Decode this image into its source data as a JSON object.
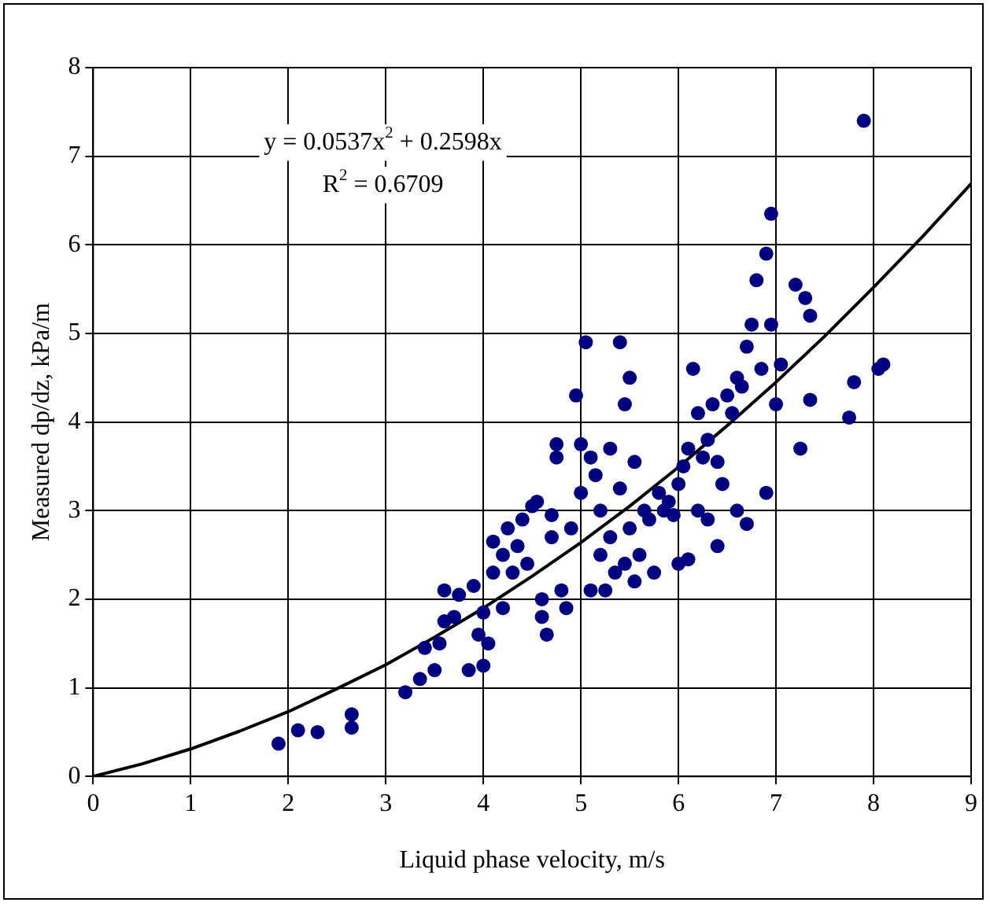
{
  "chart_data": {
    "type": "scatter",
    "xlabel": "Liquid phase velocity, m/s",
    "ylabel": "Measured dp/dz, kPa/m",
    "xlim": [
      0,
      9
    ],
    "xticks": [
      0,
      1,
      2,
      3,
      4,
      5,
      6,
      7,
      8,
      9
    ],
    "ylim": [
      0,
      8
    ],
    "yticks": [
      0,
      1,
      2,
      3,
      4,
      5,
      6,
      7,
      8
    ],
    "grid": true,
    "legend": false,
    "marker": "circle",
    "annotations": [
      "y = 0.0537x$^{2}$ + 0.2598x",
      "R$^{2}$ = 0.6709"
    ],
    "series": [
      {
        "color": "#000080",
        "x": [
          1.9,
          2.1,
          2.3,
          2.65,
          2.65,
          3.2,
          3.35,
          3.4,
          3.5,
          3.55,
          3.6,
          3.6,
          3.7,
          3.75,
          3.85,
          3.9,
          3.95,
          4.0,
          4.0,
          4.05,
          4.1,
          4.1,
          4.2,
          4.2,
          4.25,
          4.3,
          4.35,
          4.4,
          4.45,
          4.5,
          4.55,
          4.6,
          4.6,
          4.65,
          4.7,
          4.7,
          4.75,
          4.75,
          4.8,
          4.85,
          4.9,
          4.95,
          5.0,
          5.0,
          5.05,
          5.1,
          5.1,
          5.15,
          5.2,
          5.2,
          5.25,
          5.3,
          5.3,
          5.35,
          5.4,
          5.4,
          5.45,
          5.45,
          5.5,
          5.5,
          5.55,
          5.55,
          5.6,
          5.65,
          5.7,
          5.75,
          5.8,
          5.85,
          5.9,
          5.95,
          6.0,
          6.0,
          6.05,
          6.1,
          6.1,
          6.15,
          6.2,
          6.2,
          6.25,
          6.3,
          6.3,
          6.35,
          6.4,
          6.4,
          6.45,
          6.5,
          6.55,
          6.6,
          6.6,
          6.65,
          6.7,
          6.7,
          6.75,
          6.8,
          6.85,
          6.9,
          6.9,
          6.95,
          6.95,
          7.0,
          7.05,
          7.2,
          7.25,
          7.3,
          7.35,
          7.35,
          7.75,
          7.8,
          7.9,
          8.05,
          8.1
        ],
        "values": [
          0.37,
          0.52,
          0.5,
          0.55,
          0.7,
          0.95,
          1.1,
          1.45,
          1.2,
          1.5,
          1.75,
          2.1,
          1.8,
          2.05,
          1.2,
          2.15,
          1.6,
          1.25,
          1.85,
          1.5,
          2.65,
          2.3,
          2.5,
          1.9,
          2.8,
          2.3,
          2.6,
          2.9,
          2.4,
          3.05,
          3.1,
          2.0,
          1.8,
          1.6,
          2.7,
          2.95,
          3.75,
          3.6,
          2.1,
          1.9,
          2.8,
          4.3,
          3.75,
          3.2,
          4.9,
          3.6,
          2.1,
          3.4,
          2.5,
          3.0,
          2.1,
          2.7,
          3.7,
          2.3,
          4.9,
          3.25,
          4.2,
          2.4,
          4.5,
          2.8,
          3.55,
          2.2,
          2.5,
          3.0,
          2.9,
          2.3,
          3.2,
          3.0,
          3.1,
          2.95,
          3.3,
          2.4,
          3.5,
          3.7,
          2.45,
          4.6,
          4.1,
          3.0,
          3.6,
          3.8,
          2.9,
          4.2,
          3.55,
          2.6,
          3.3,
          4.3,
          4.1,
          3.0,
          4.5,
          4.4,
          2.85,
          4.85,
          5.1,
          5.6,
          4.6,
          5.9,
          3.2,
          6.35,
          5.1,
          4.2,
          4.65,
          5.55,
          3.7,
          5.4,
          5.2,
          4.25,
          4.05,
          4.45,
          7.4,
          4.6,
          4.65
        ]
      },
      {
        "type": "line",
        "color": "#000000",
        "marker": "none",
        "line_style": "solid",
        "x": [
          0,
          0.5,
          1,
          1.5,
          2,
          2.5,
          3,
          3.5,
          4,
          4.5,
          5,
          5.5,
          6,
          6.5,
          7,
          7.5,
          8,
          8.5,
          9
        ],
        "values": [
          0,
          0.14,
          0.31,
          0.51,
          0.73,
          0.99,
          1.26,
          1.57,
          1.9,
          2.26,
          2.64,
          3.05,
          3.49,
          3.96,
          4.45,
          4.97,
          5.52,
          6.09,
          6.69
        ]
      }
    ]
  }
}
